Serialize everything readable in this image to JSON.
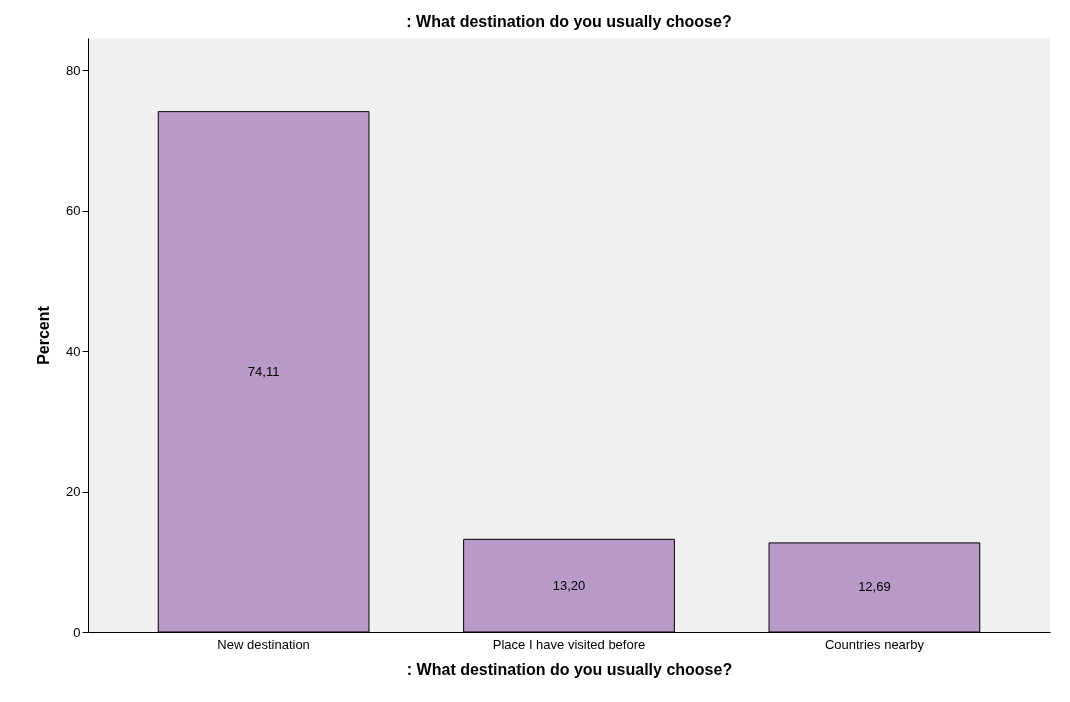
{
  "chart_data": {
    "type": "bar",
    "title": ": What destination do you usually choose?",
    "xlabel": ": What destination do you usually choose?",
    "ylabel": "Percent",
    "categories": [
      "New destination",
      "Place I have visited before",
      "Countries nearby"
    ],
    "values": [
      74.11,
      13.2,
      12.69
    ],
    "value_labels": [
      "74,11",
      "13,20",
      "12,69"
    ],
    "color": "#b899c8",
    "ylim": [
      0,
      84.6
    ],
    "yticks": [
      0,
      20,
      40,
      60,
      80
    ],
    "grid": false
  }
}
